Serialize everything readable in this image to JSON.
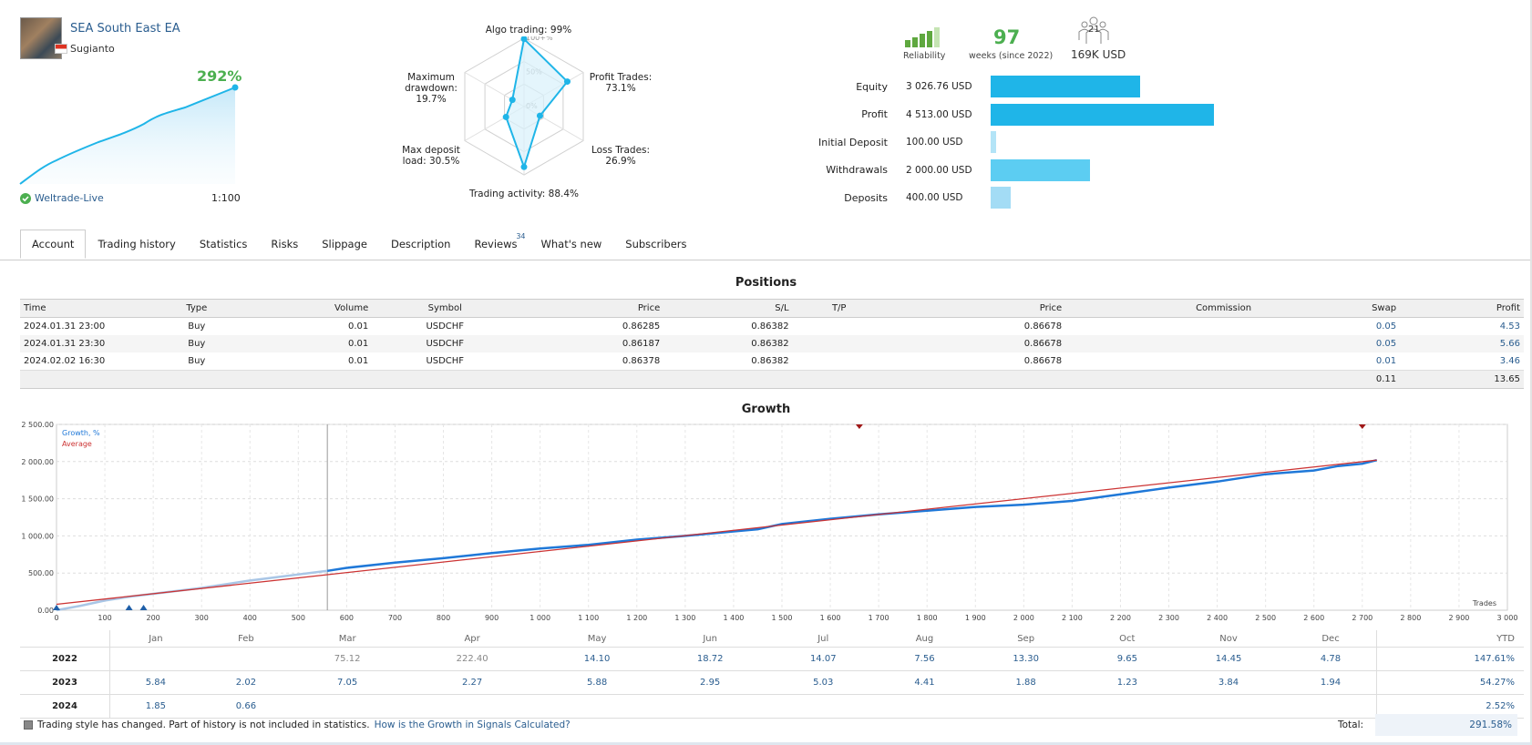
{
  "signal": {
    "name": "SEA South East EA",
    "author": "Sugianto",
    "growth_pct": "292%",
    "broker": "Weltrade-Live",
    "leverage": "1:100"
  },
  "radar": {
    "labels": {
      "algo": [
        "Algo trading: 99%"
      ],
      "profit": [
        "Profit Trades:",
        "73.1%"
      ],
      "loss": [
        "Loss Trades:",
        "26.9%"
      ],
      "activity": [
        "Trading activity: 88.4%"
      ],
      "deposit": [
        "Max deposit",
        "load: 30.5%"
      ],
      "drawdown": [
        "Maximum",
        "drawdown:",
        "19.7%"
      ]
    },
    "values": {
      "algo": 99,
      "profit": 73.1,
      "loss": 26.9,
      "activity": 88.4,
      "deposit": 30.5,
      "drawdown": 19.7
    },
    "ring_labels": [
      "100+%",
      "50%",
      "0%"
    ]
  },
  "stats": {
    "reliability_label": "Reliability",
    "weeks": "97",
    "weeks_label": "weeks (since 2022)",
    "subscribers_count": "21",
    "subscribers_usd": "169K USD",
    "rows": [
      {
        "label": "Equity",
        "value": "3 026.76 USD",
        "amount": 3026.76,
        "color": "#1fb5e8"
      },
      {
        "label": "Profit",
        "value": "4 513.00 USD",
        "amount": 4513.0,
        "color": "#1fb5e8"
      },
      {
        "label": "Initial Deposit",
        "value": "100.00 USD",
        "amount": 100.0,
        "color": "#b3e4f7"
      },
      {
        "label": "Withdrawals",
        "value": "2 000.00 USD",
        "amount": 2000.0,
        "color": "#5ccdf2"
      },
      {
        "label": "Deposits",
        "value": "400.00 USD",
        "amount": 400.0,
        "color": "#a3dcf5"
      }
    ]
  },
  "tabs": [
    {
      "label": "Account",
      "active": true
    },
    {
      "label": "Trading history"
    },
    {
      "label": "Statistics"
    },
    {
      "label": "Risks"
    },
    {
      "label": "Slippage"
    },
    {
      "label": "Description"
    },
    {
      "label": "Reviews",
      "badge": "34"
    },
    {
      "label": "What's new"
    },
    {
      "label": "Subscribers"
    }
  ],
  "positions": {
    "title": "Positions",
    "headers": [
      "Time",
      "Type",
      "Volume",
      "Symbol",
      "Price",
      "S/L",
      "T/P",
      "Price",
      "Commission",
      "Swap",
      "Profit"
    ],
    "rows": [
      [
        "2024.01.31 23:00",
        "Buy",
        "0.01",
        "USDCHF",
        "0.86285",
        "0.86382",
        "",
        "0.86678",
        "",
        "0.05",
        "4.53"
      ],
      [
        "2024.01.31 23:30",
        "Buy",
        "0.01",
        "USDCHF",
        "0.86187",
        "0.86382",
        "",
        "0.86678",
        "",
        "0.05",
        "5.66"
      ],
      [
        "2024.02.02 16:30",
        "Buy",
        "0.01",
        "USDCHF",
        "0.86378",
        "0.86382",
        "",
        "0.86678",
        "",
        "0.01",
        "3.46"
      ]
    ],
    "totals": {
      "swap": "0.11",
      "profit": "13.65"
    }
  },
  "growth": {
    "title": "Growth",
    "legend_growth": "Growth, %",
    "legend_average": "Average",
    "x_axis_label": "Trades",
    "y_ticks": [
      "0.00",
      "500.00",
      "1 000.00",
      "1 500.00",
      "2 000.00",
      "2 500.00"
    ],
    "x_ticks": [
      "0",
      "100",
      "200",
      "300",
      "400",
      "500",
      "600",
      "700",
      "800",
      "900",
      "1 000",
      "1 100",
      "1 200",
      "1 300",
      "1 400",
      "1 500",
      "1 600",
      "1 700",
      "1 800",
      "1 900",
      "2 000",
      "2 100",
      "2 200",
      "2 300",
      "2 400",
      "2 500",
      "2 600",
      "2 700",
      "2 800",
      "2 900",
      "3 000"
    ]
  },
  "chart_data": {
    "type": "line",
    "title": "Growth",
    "xlabel": "Trades",
    "ylabel": "",
    "xlim": [
      0,
      3000
    ],
    "ylim": [
      0,
      2500
    ],
    "series": [
      {
        "name": "Growth, %",
        "x": [
          0,
          50,
          100,
          150,
          200,
          250,
          300,
          400,
          500,
          560,
          600,
          700,
          800,
          900,
          1000,
          1100,
          1200,
          1300,
          1400,
          1450,
          1500,
          1600,
          1700,
          1800,
          1900,
          2000,
          2100,
          2200,
          2300,
          2400,
          2500,
          2600,
          2650,
          2700,
          2730
        ],
        "y": [
          0,
          60,
          130,
          180,
          220,
          260,
          300,
          400,
          480,
          530,
          570,
          640,
          700,
          770,
          830,
          880,
          950,
          1000,
          1060,
          1090,
          1160,
          1230,
          1290,
          1340,
          1390,
          1420,
          1470,
          1560,
          1650,
          1730,
          1830,
          1880,
          1940,
          1970,
          2020
        ]
      },
      {
        "name": "Average",
        "x": [
          0,
          2730
        ],
        "y": [
          80,
          2020
        ]
      }
    ]
  },
  "monthly": {
    "headers": [
      "",
      "Jan",
      "Feb",
      "Mar",
      "Apr",
      "May",
      "Jun",
      "Jul",
      "Aug",
      "Sep",
      "Oct",
      "Nov",
      "Dec",
      "YTD"
    ],
    "rows": [
      {
        "year": "2022",
        "values": [
          "",
          "",
          "75.12",
          "222.40",
          "14.10",
          "18.72",
          "14.07",
          "7.56",
          "13.30",
          "9.65",
          "14.45",
          "4.78"
        ],
        "gray": [
          2,
          3
        ],
        "ytd": "147.61%"
      },
      {
        "year": "2023",
        "values": [
          "5.84",
          "2.02",
          "7.05",
          "2.27",
          "5.88",
          "2.95",
          "5.03",
          "4.41",
          "1.88",
          "1.23",
          "3.84",
          "1.94"
        ],
        "gray": [],
        "ytd": "54.27%"
      },
      {
        "year": "2024",
        "values": [
          "1.85",
          "0.66",
          "",
          "",
          "",
          "",
          "",
          "",
          "",
          "",
          "",
          ""
        ],
        "gray": [],
        "ytd": "2.52%"
      }
    ],
    "footer_note": "Trading style has changed. Part of history is not included in statistics.",
    "footer_link": "How is the Growth in Signals Calculated?",
    "total_label": "Total:",
    "total_value": "291.58%"
  }
}
